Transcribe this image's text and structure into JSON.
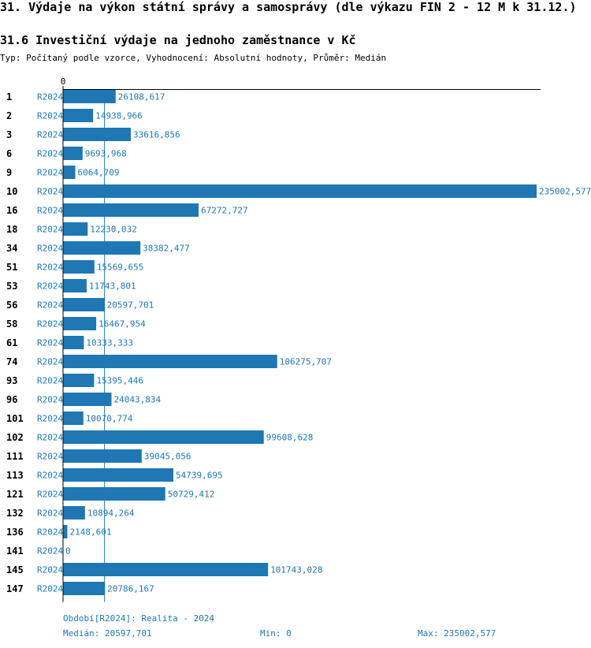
{
  "header": {
    "title": "31. Výdaje na výkon státní správy a samosprávy (dle výkazu FIN 2 - 12 M k 31.12.)",
    "subtitle": "31.6 Investiční výdaje na jednoho zaměstnance v Kč",
    "meta": "Typ: Počítaný podle vzorce, Vyhodnocení: Absolutní hodnoty, Průměr: Medián"
  },
  "colors": {
    "bar": "#1f77b4",
    "axis": "#000000"
  },
  "chart_data": {
    "type": "bar",
    "orientation": "horizontal",
    "title": "31.6 Investiční výdaje na jednoho zaměstnance v Kč",
    "period": "R2024",
    "x_tick_labels": [
      "0"
    ],
    "xlim": [
      0,
      235002.577
    ],
    "median_line": 20597.701,
    "categories": [
      "1",
      "2",
      "3",
      "6",
      "9",
      "10",
      "16",
      "18",
      "34",
      "51",
      "53",
      "56",
      "58",
      "61",
      "74",
      "93",
      "96",
      "101",
      "102",
      "111",
      "113",
      "121",
      "132",
      "136",
      "141",
      "145",
      "147"
    ],
    "values": [
      26108.617,
      14938.966,
      33616.856,
      9693.968,
      6064.709,
      235002.577,
      67272.727,
      12230.032,
      38382.477,
      15569.655,
      11743.801,
      20597.701,
      16467.954,
      10333.333,
      106275.707,
      15395.446,
      24043.834,
      10070.774,
      99608.628,
      39045.056,
      54739.695,
      50729.412,
      10894.264,
      2148.601,
      0,
      101743.028,
      20786.167
    ],
    "value_labels": [
      "26108,617",
      "14938,966",
      "33616,856",
      "9693,968",
      "6064,709",
      "235002,577",
      "67272,727",
      "12230,032",
      "38382,477",
      "15569,655",
      "11743,801",
      "20597,701",
      "16467,954",
      "10333,333",
      "106275,707",
      "15395,446",
      "24043,834",
      "10070,774",
      "99608,628",
      "39045,056",
      "54739,695",
      "50729,412",
      "10894,264",
      "2148,601",
      "0",
      "101743,028",
      "20786,167"
    ]
  },
  "footer": {
    "period_note": "Období[R2024]: Realita - 2024",
    "median": "Medián: 20597,701",
    "min": "Min: 0",
    "max": "Max: 235002,577"
  }
}
